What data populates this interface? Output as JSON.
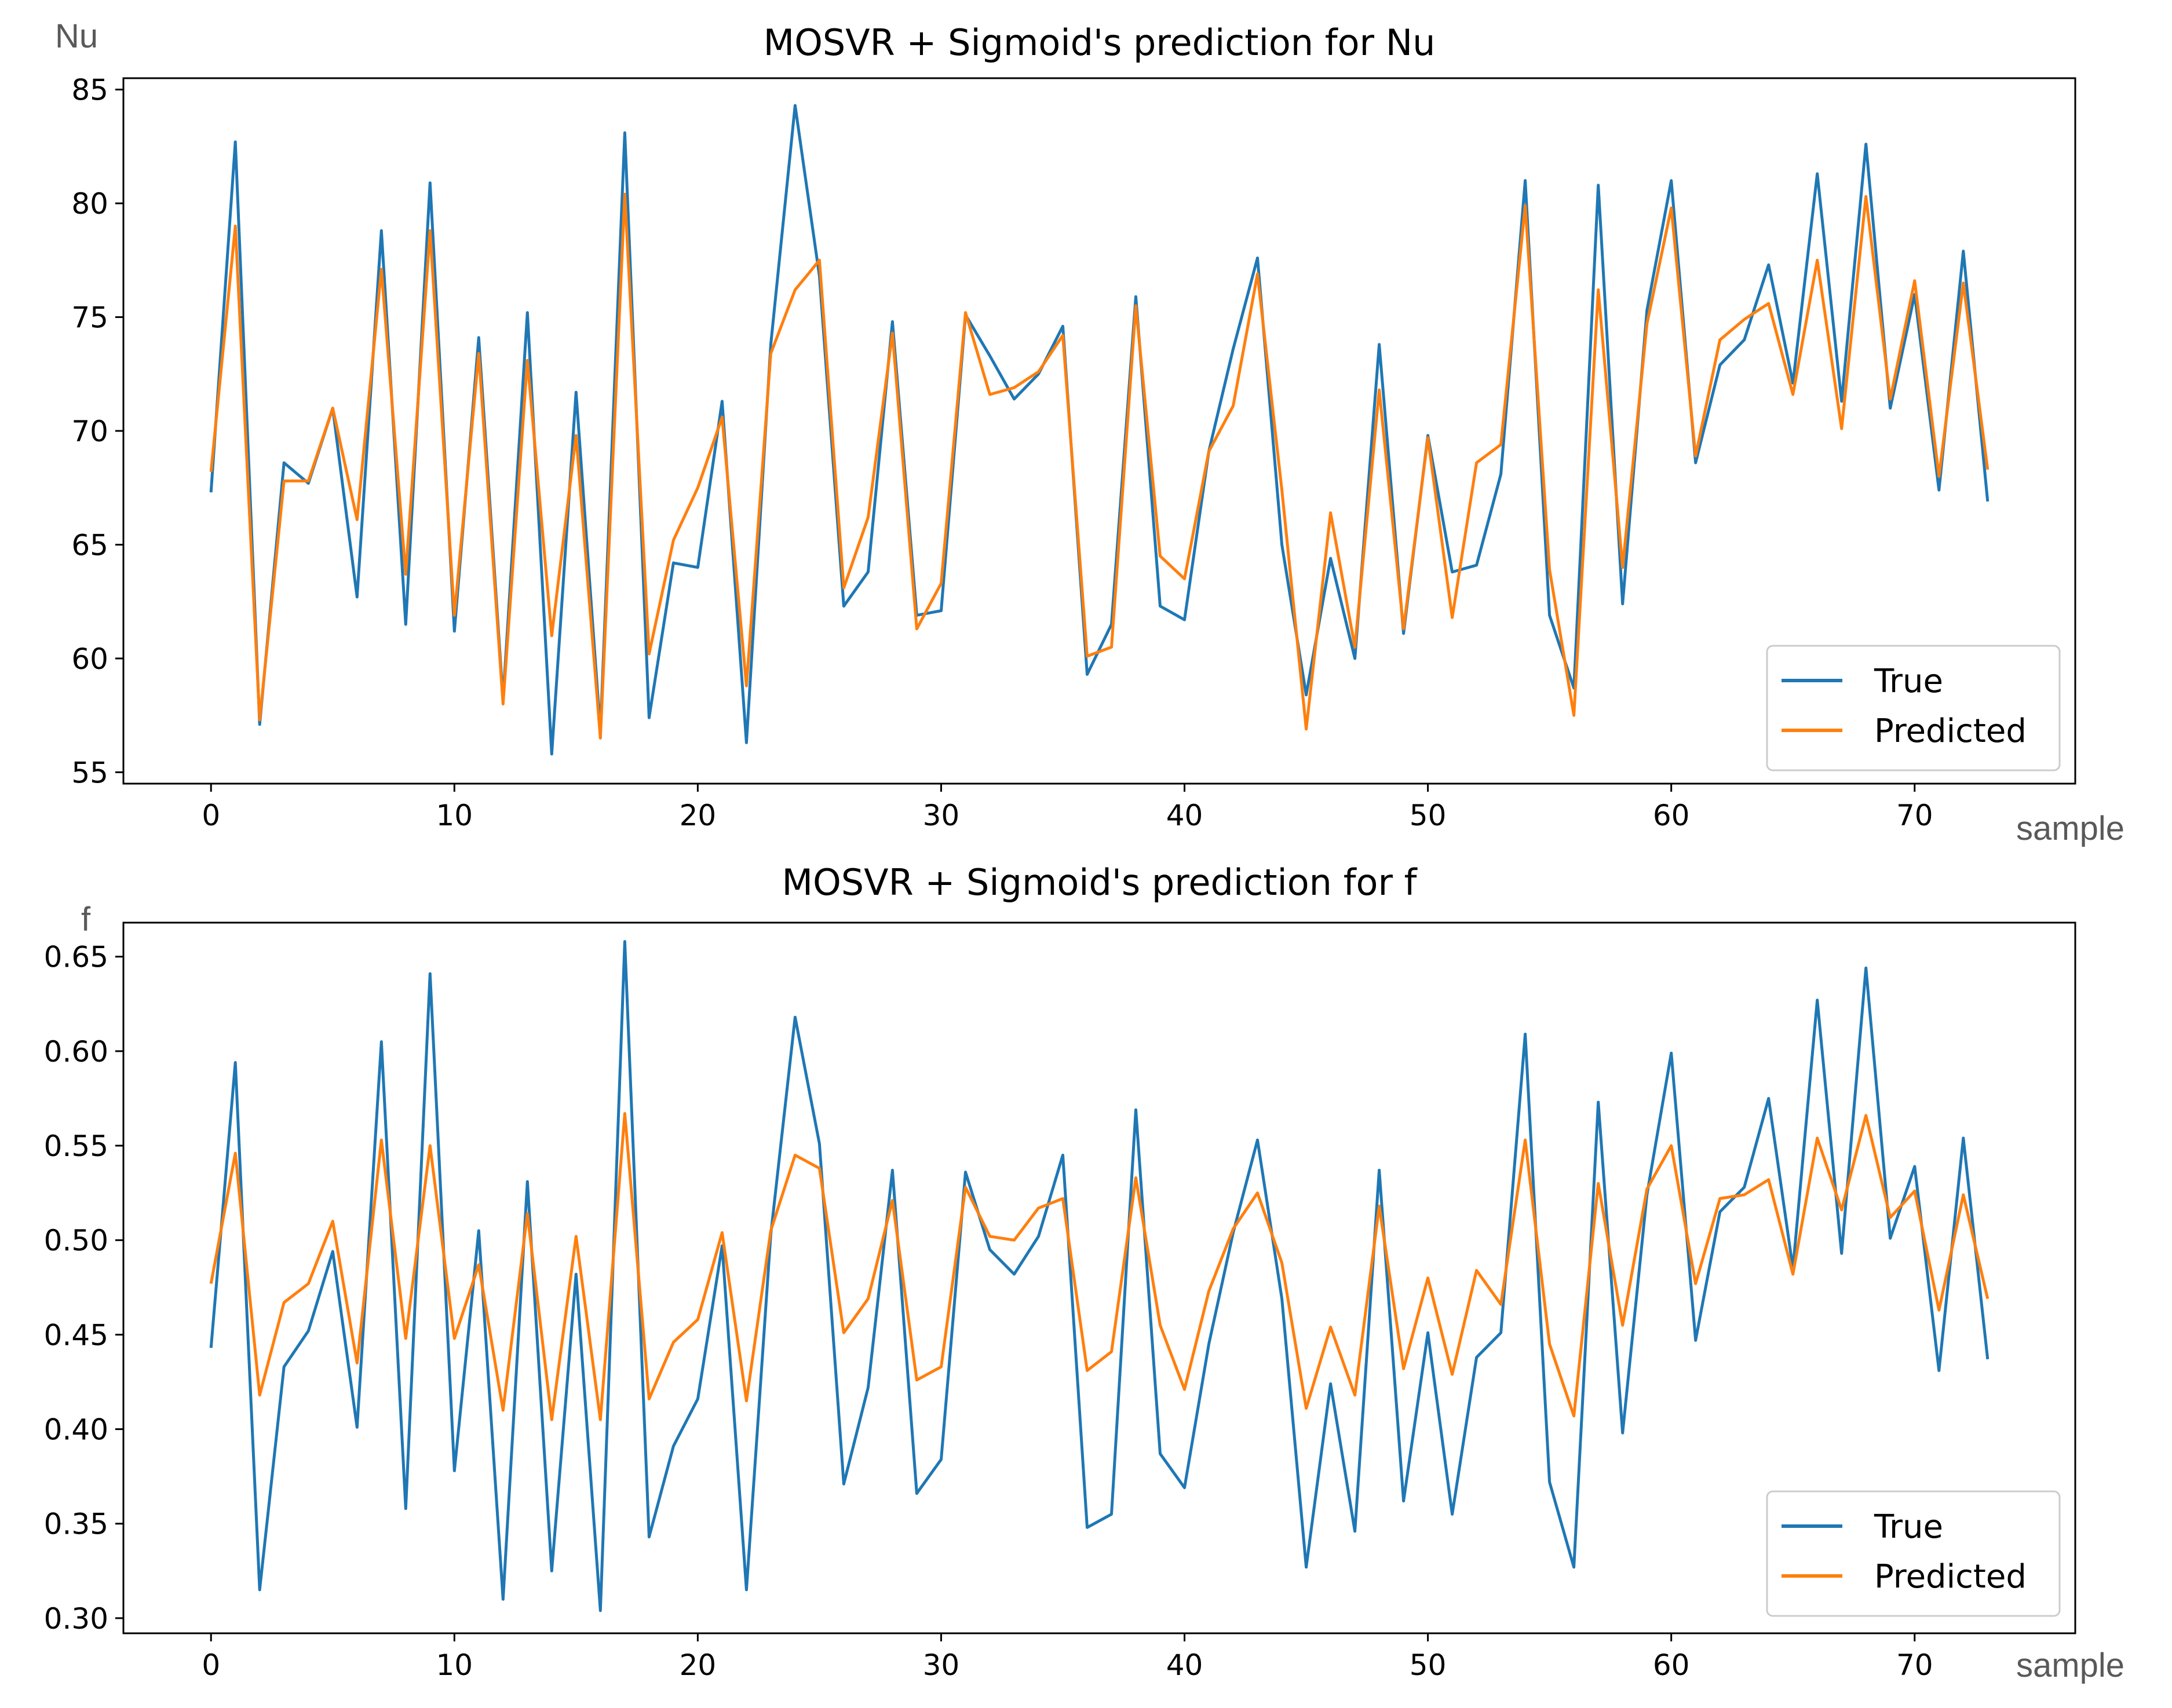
{
  "chart_data": [
    {
      "type": "line",
      "title": "MOSVR + Sigmoid's prediction for Nu",
      "ylabel": "Nu",
      "xlabel": "sample",
      "xlim": [
        -3.6,
        76.6
      ],
      "ylim": [
        54.5,
        85.5
      ],
      "xticks": [
        0,
        10,
        20,
        30,
        40,
        50,
        60,
        70
      ],
      "yticks": [
        55,
        60,
        65,
        70,
        75,
        80,
        85
      ],
      "ytick_labels": [
        "55",
        "60",
        "65",
        "70",
        "75",
        "80",
        "85"
      ],
      "legend_position": "lower-right",
      "series": [
        {
          "name": "True",
          "color": "#1f77b4",
          "values": [
            67.3,
            82.7,
            57.1,
            68.6,
            67.7,
            71.0,
            62.7,
            78.8,
            61.5,
            80.9,
            61.2,
            74.1,
            58.2,
            75.2,
            55.8,
            71.7,
            56.8,
            83.1,
            57.4,
            64.2,
            64.0,
            71.3,
            56.3,
            73.8,
            84.3,
            76.8,
            62.3,
            63.8,
            74.8,
            61.9,
            62.1,
            75.1,
            73.3,
            71.4,
            72.5,
            74.6,
            59.3,
            61.5,
            75.9,
            62.3,
            61.7,
            69.1,
            73.6,
            77.6,
            65.0,
            58.4,
            64.4,
            60.0,
            73.8,
            61.1,
            69.8,
            63.8,
            64.1,
            68.1,
            81.0,
            61.9,
            58.7,
            80.8,
            62.4,
            75.3,
            81.0,
            68.6,
            72.9,
            74.0,
            77.3,
            72.1,
            81.3,
            71.3,
            82.6,
            71.0,
            76.0,
            67.4,
            77.9,
            66.9
          ]
        },
        {
          "name": "Predicted",
          "color": "#ff7f0e",
          "values": [
            68.2,
            79.0,
            57.3,
            67.8,
            67.8,
            71.0,
            66.1,
            77.1,
            63.7,
            78.8,
            61.9,
            73.4,
            58.0,
            73.1,
            61.0,
            69.8,
            56.5,
            80.4,
            60.2,
            65.2,
            67.5,
            70.6,
            58.8,
            73.4,
            76.2,
            77.5,
            63.1,
            66.2,
            74.3,
            61.3,
            63.3,
            75.2,
            71.6,
            71.9,
            72.6,
            74.2,
            60.1,
            60.5,
            75.5,
            64.5,
            63.5,
            69.1,
            71.1,
            76.9,
            67.4,
            56.9,
            66.4,
            60.5,
            71.8,
            61.3,
            69.7,
            61.8,
            68.6,
            69.4,
            79.9,
            63.9,
            57.5,
            76.2,
            64.0,
            74.7,
            79.8,
            68.9,
            74.0,
            74.9,
            75.6,
            71.6,
            77.5,
            70.1,
            80.3,
            71.4,
            76.6,
            68.0,
            76.5,
            68.3
          ]
        }
      ]
    },
    {
      "type": "line",
      "title": "MOSVR + Sigmoid's prediction for f",
      "ylabel": "f",
      "xlabel": "sample",
      "xlim": [
        -3.6,
        76.6
      ],
      "ylim": [
        0.292,
        0.668
      ],
      "xticks": [
        0,
        10,
        20,
        30,
        40,
        50,
        60,
        70
      ],
      "yticks": [
        0.3,
        0.35,
        0.4,
        0.45,
        0.5,
        0.55,
        0.6,
        0.65
      ],
      "ytick_labels": [
        "0.30",
        "0.35",
        "0.40",
        "0.45",
        "0.50",
        "0.55",
        "0.60",
        "0.65"
      ],
      "legend_position": "lower-right",
      "series": [
        {
          "name": "True",
          "color": "#1f77b4",
          "values": [
            0.443,
            0.594,
            0.315,
            0.433,
            0.452,
            0.494,
            0.401,
            0.605,
            0.358,
            0.641,
            0.378,
            0.505,
            0.31,
            0.531,
            0.325,
            0.482,
            0.304,
            0.658,
            0.343,
            0.391,
            0.416,
            0.497,
            0.315,
            0.503,
            0.618,
            0.551,
            0.371,
            0.422,
            0.537,
            0.366,
            0.384,
            0.536,
            0.495,
            0.482,
            0.502,
            0.545,
            0.348,
            0.355,
            0.569,
            0.387,
            0.369,
            0.445,
            0.504,
            0.553,
            0.469,
            0.327,
            0.424,
            0.346,
            0.537,
            0.362,
            0.451,
            0.355,
            0.438,
            0.451,
            0.609,
            0.372,
            0.327,
            0.573,
            0.398,
            0.524,
            0.599,
            0.447,
            0.515,
            0.528,
            0.575,
            0.485,
            0.627,
            0.493,
            0.644,
            0.501,
            0.539,
            0.431,
            0.554,
            0.437
          ]
        },
        {
          "name": "Predicted",
          "color": "#ff7f0e",
          "values": [
            0.477,
            0.546,
            0.418,
            0.467,
            0.477,
            0.51,
            0.435,
            0.553,
            0.448,
            0.55,
            0.448,
            0.487,
            0.41,
            0.514,
            0.405,
            0.502,
            0.405,
            0.567,
            0.416,
            0.446,
            0.458,
            0.504,
            0.415,
            0.505,
            0.545,
            0.538,
            0.451,
            0.469,
            0.521,
            0.426,
            0.433,
            0.528,
            0.502,
            0.5,
            0.517,
            0.522,
            0.431,
            0.441,
            0.533,
            0.455,
            0.421,
            0.473,
            0.506,
            0.525,
            0.488,
            0.411,
            0.454,
            0.418,
            0.518,
            0.432,
            0.48,
            0.429,
            0.484,
            0.466,
            0.553,
            0.445,
            0.407,
            0.53,
            0.455,
            0.527,
            0.55,
            0.477,
            0.522,
            0.524,
            0.532,
            0.482,
            0.554,
            0.516,
            0.566,
            0.512,
            0.526,
            0.463,
            0.524,
            0.469
          ]
        }
      ]
    }
  ]
}
